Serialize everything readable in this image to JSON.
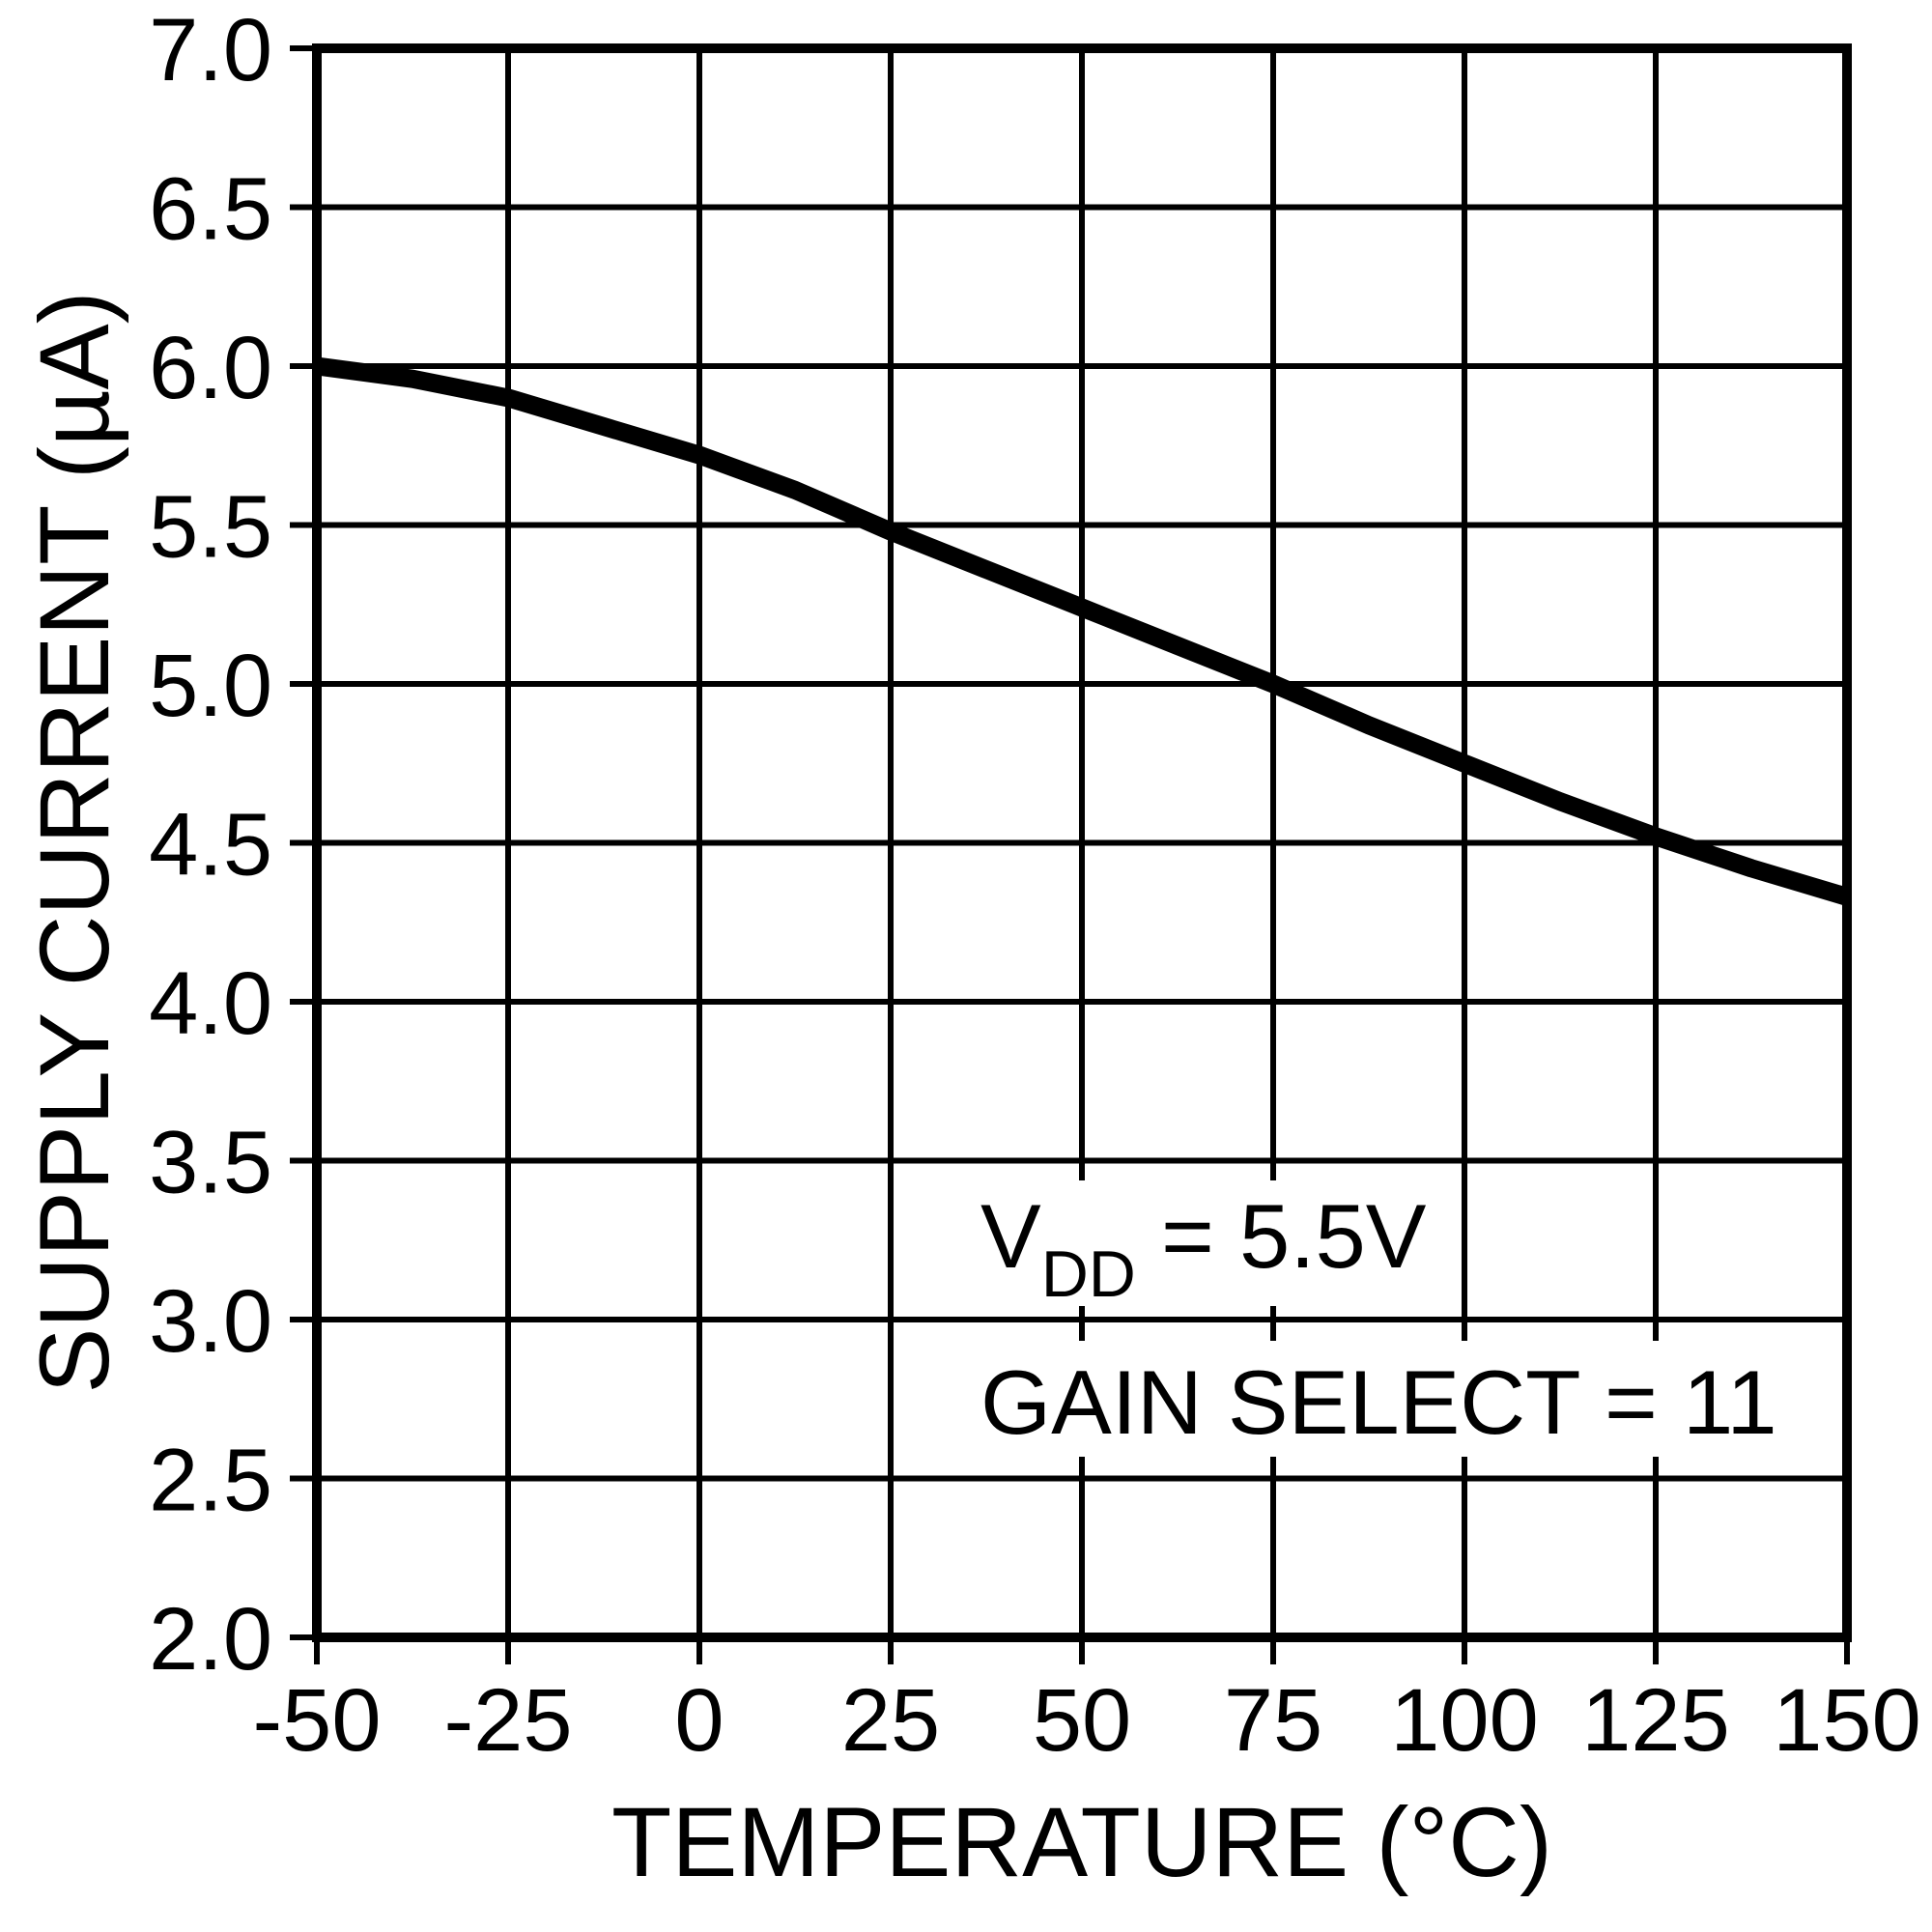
{
  "figure": {
    "background_color": "#ffffff",
    "ink_color": "#000000"
  },
  "chart_data": {
    "type": "line",
    "title": "",
    "xlabel": "TEMPERATURE (°C)",
    "ylabel": "SUPPLY CURRENT (µA)",
    "xlim": [
      -50,
      150
    ],
    "ylim": [
      2.0,
      7.0
    ],
    "xticks": [
      "-50",
      "-25",
      "0",
      "25",
      "50",
      "75",
      "100",
      "125",
      "150"
    ],
    "yticks": [
      "7.0",
      "6.5",
      "6.0",
      "5.5",
      "5.0",
      "4.5",
      "4.0",
      "3.5",
      "3.0",
      "2.5",
      "2.0"
    ],
    "grid": true,
    "legend": "none",
    "series": [
      {
        "name": "supply-current",
        "x": [
          -50,
          -37.5,
          -25,
          -12.5,
          0,
          12.5,
          25,
          37.5,
          50,
          62.5,
          75,
          87.5,
          100,
          112.5,
          125,
          137.5,
          150
        ],
        "y": [
          6.0,
          5.96,
          5.9,
          5.81,
          5.72,
          5.61,
          5.48,
          5.36,
          5.24,
          5.12,
          5.0,
          4.87,
          4.75,
          4.63,
          4.52,
          4.42,
          4.33
        ]
      }
    ],
    "annotations": [
      {
        "text_main": "V",
        "text_sub": "DD",
        "text_rest": " = 5.5V"
      },
      {
        "text": "GAIN SELECT = 11"
      }
    ]
  }
}
